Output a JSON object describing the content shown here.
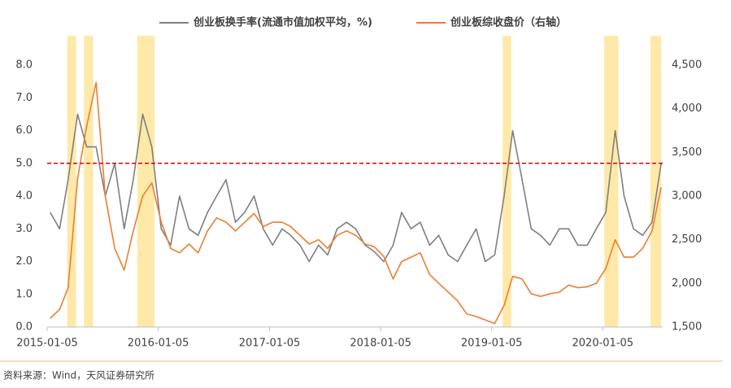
{
  "chart_data": {
    "type": "line",
    "legend": "top",
    "source": "资料来源：Wind，天风证券研究所",
    "x": [
      "2015-01-15",
      "2015-02-15",
      "2015-03-15",
      "2015-04-15",
      "2015-05-15",
      "2015-06-15",
      "2015-07-15",
      "2015-08-15",
      "2015-09-15",
      "2015-10-15",
      "2015-11-15",
      "2015-12-15",
      "2016-01-15",
      "2016-02-15",
      "2016-03-15",
      "2016-04-15",
      "2016-05-15",
      "2016-06-15",
      "2016-07-15",
      "2016-08-15",
      "2016-09-15",
      "2016-10-15",
      "2016-11-15",
      "2016-12-15",
      "2017-01-15",
      "2017-02-15",
      "2017-03-15",
      "2017-04-15",
      "2017-05-15",
      "2017-06-15",
      "2017-07-15",
      "2017-08-15",
      "2017-09-15",
      "2017-10-15",
      "2017-11-15",
      "2017-12-15",
      "2018-01-15",
      "2018-02-15",
      "2018-03-15",
      "2018-04-15",
      "2018-05-15",
      "2018-06-15",
      "2018-07-15",
      "2018-08-15",
      "2018-09-15",
      "2018-10-15",
      "2018-11-15",
      "2018-12-15",
      "2019-01-15",
      "2019-02-15",
      "2019-03-15",
      "2019-04-15",
      "2019-05-15",
      "2019-06-15",
      "2019-07-15",
      "2019-08-15",
      "2019-09-15",
      "2019-10-15",
      "2019-11-15",
      "2019-12-15",
      "2020-01-15",
      "2020-02-15",
      "2020-03-15",
      "2020-04-15",
      "2020-05-15",
      "2020-06-15",
      "2020-07-15"
    ],
    "series": [
      {
        "name": "创业板换手率(流通市值加权平均，%)",
        "color": "#7f7f7f",
        "axis": "y",
        "values": [
          3.5,
          3.0,
          4.5,
          6.5,
          5.5,
          5.5,
          4.0,
          5.0,
          3.0,
          4.5,
          6.5,
          5.5,
          3.0,
          2.5,
          4.0,
          3.0,
          2.8,
          3.5,
          4.0,
          4.5,
          3.2,
          3.5,
          4.0,
          3.0,
          2.5,
          3.0,
          2.8,
          2.5,
          2.0,
          2.5,
          2.2,
          3.0,
          3.2,
          3.0,
          2.5,
          2.3,
          2.0,
          2.5,
          3.5,
          3.0,
          3.2,
          2.5,
          2.8,
          2.2,
          2.0,
          2.5,
          3.0,
          2.0,
          2.2,
          4.0,
          6.0,
          4.5,
          3.0,
          2.8,
          2.5,
          3.0,
          3.0,
          2.5,
          2.5,
          3.0,
          3.5,
          6.0,
          4.0,
          3.0,
          2.8,
          3.2,
          5.0
        ]
      },
      {
        "name": "创业板综收盘价（右轴）",
        "color": "#ed7d31",
        "axis": "y2",
        "values": [
          1600,
          1700,
          1950,
          3200,
          3800,
          4300,
          3000,
          2400,
          2150,
          2600,
          3000,
          3150,
          2700,
          2400,
          2350,
          2450,
          2350,
          2600,
          2750,
          2700,
          2600,
          2700,
          2800,
          2650,
          2700,
          2700,
          2650,
          2550,
          2450,
          2500,
          2400,
          2550,
          2600,
          2550,
          2450,
          2420,
          2310,
          2050,
          2250,
          2300,
          2350,
          2100,
          2000,
          1900,
          1800,
          1650,
          1620,
          1580,
          1540,
          1750,
          2080,
          2050,
          1880,
          1850,
          1880,
          1900,
          1980,
          1950,
          1960,
          2000,
          2170,
          2500,
          2300,
          2300,
          2400,
          2600,
          3100
        ]
      }
    ],
    "xlim": [
      "2015-01-05",
      "2020-07-20"
    ],
    "xticks": [
      "2015-01-05",
      "2016-01-05",
      "2017-01-05",
      "2018-01-05",
      "2019-01-05",
      "2020-01-05"
    ],
    "ylim": [
      0,
      8
    ],
    "yticks": [
      {
        "value": 0,
        "label": "0.0"
      },
      {
        "value": 1,
        "label": "1.0"
      },
      {
        "value": 2,
        "label": "2.0"
      },
      {
        "value": 3,
        "label": "3.0"
      },
      {
        "value": 4,
        "label": "4.0"
      },
      {
        "value": 5,
        "label": "5.0"
      },
      {
        "value": 6,
        "label": "6.0"
      },
      {
        "value": 7,
        "label": "7.0"
      },
      {
        "value": 8,
        "label": "8.0"
      }
    ],
    "y2lim": [
      1500,
      4500
    ],
    "y2ticks": [
      {
        "value": 1500,
        "label": "1,500"
      },
      {
        "value": 2000,
        "label": "2,000"
      },
      {
        "value": 2500,
        "label": "2,500"
      },
      {
        "value": 3000,
        "label": "3,000"
      },
      {
        "value": 3500,
        "label": "3,500"
      },
      {
        "value": 4000,
        "label": "4,000"
      },
      {
        "value": 4500,
        "label": "4,500"
      }
    ],
    "reference_line": {
      "value": 5,
      "color": "#e00000"
    },
    "highlights": {
      "color": "#ffe9a8",
      "ranges": [
        [
          "2015-03-12",
          "2015-04-10"
        ],
        [
          "2015-05-06",
          "2015-06-05"
        ],
        [
          "2015-10-28",
          "2015-12-24"
        ],
        [
          "2019-02-10",
          "2019-03-10"
        ],
        [
          "2020-01-10",
          "2020-02-25"
        ],
        [
          "2020-06-10",
          "2020-07-15"
        ]
      ]
    }
  }
}
